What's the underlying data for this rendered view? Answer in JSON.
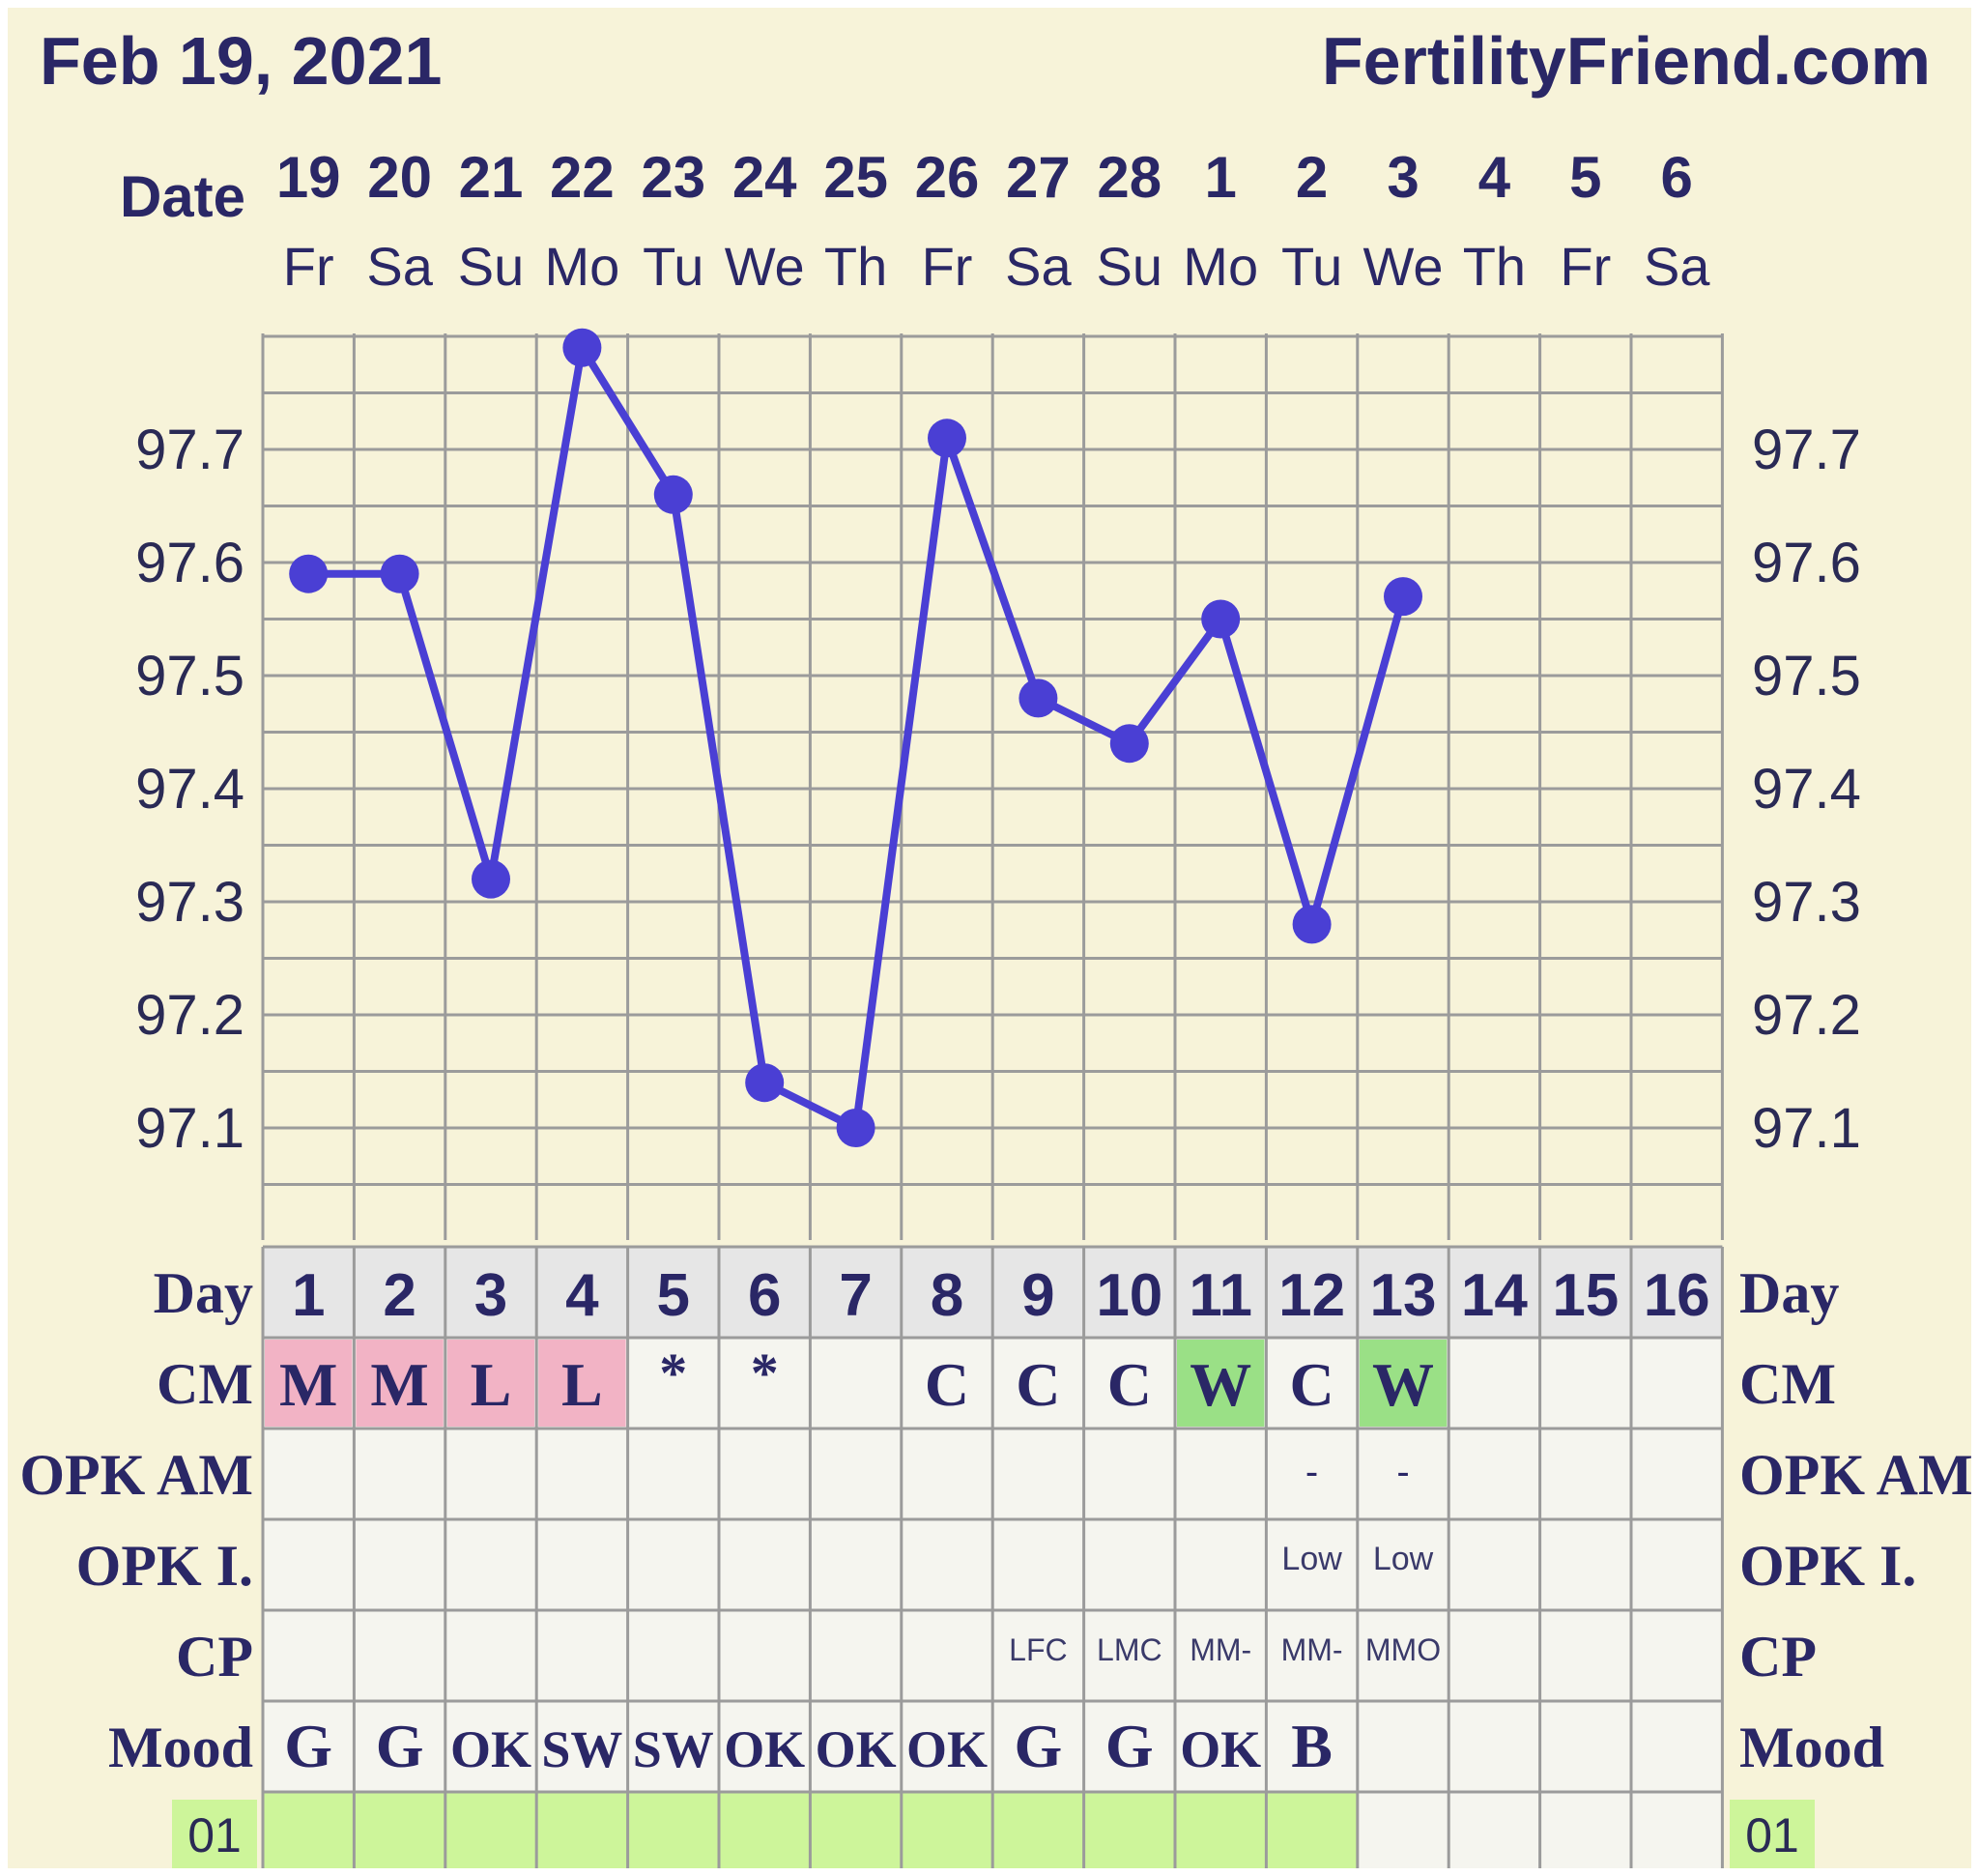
{
  "header": {
    "date_label": "Feb 19, 2021",
    "site_name": "FertilityFriend.com"
  },
  "colors": {
    "background": "#f7f3d9",
    "text": "#2a2766",
    "line": "#4a3fd4",
    "grid": "#9b9b9b",
    "day_row_bg": "#e6e6e6",
    "cell_bg": "#f5f5ef",
    "cm_pink": "#f2b3c5",
    "cm_green": "#9ae086",
    "bottom_green": "#cdf59a"
  },
  "chart_data": {
    "type": "line",
    "title": "",
    "x": [
      1,
      2,
      3,
      4,
      5,
      6,
      7,
      8,
      9,
      10,
      11,
      12,
      13
    ],
    "xlabel": "Day",
    "ylabel": "",
    "ylim": [
      97.0,
      97.8
    ],
    "yticks": [
      97.1,
      97.2,
      97.3,
      97.4,
      97.5,
      97.6,
      97.7
    ],
    "grid": true,
    "series": [
      {
        "values": [
          97.59,
          97.59,
          97.32,
          97.79,
          97.66,
          97.14,
          97.1,
          97.71,
          97.48,
          97.44,
          97.55,
          97.28,
          97.57
        ]
      }
    ]
  },
  "date_row_label": "Date",
  "dates": [
    "19",
    "20",
    "21",
    "22",
    "23",
    "24",
    "25",
    "26",
    "27",
    "28",
    "1",
    "2",
    "3",
    "4",
    "5",
    "6"
  ],
  "weekdays": [
    "Fr",
    "Sa",
    "Su",
    "Mo",
    "Tu",
    "We",
    "Th",
    "Fr",
    "Sa",
    "Su",
    "Mo",
    "Tu",
    "We",
    "Th",
    "Fr",
    "Sa"
  ],
  "day_label": "Day",
  "days": [
    "1",
    "2",
    "3",
    "4",
    "5",
    "6",
    "7",
    "8",
    "9",
    "10",
    "11",
    "12",
    "13",
    "14",
    "15",
    "16"
  ],
  "rows": {
    "cm": {
      "label": "CM",
      "cells": [
        "M",
        "M",
        "L",
        "L",
        "*",
        "*",
        "",
        "C",
        "C",
        "C",
        "W",
        "C",
        "W",
        "",
        "",
        ""
      ],
      "highlights": [
        "pink",
        "pink",
        "pink",
        "pink",
        "",
        "",
        "",
        "",
        "",
        "",
        "green",
        "",
        "green",
        "",
        "",
        ""
      ]
    },
    "opk_am": {
      "label": "OPK AM",
      "cells": [
        "",
        "",
        "",
        "",
        "",
        "",
        "",
        "",
        "",
        "",
        "",
        "-",
        "-",
        "",
        "",
        ""
      ]
    },
    "opk_i": {
      "label": "OPK I.",
      "cells": [
        "",
        "",
        "",
        "",
        "",
        "",
        "",
        "",
        "",
        "",
        "",
        "Low",
        "Low",
        "",
        "",
        ""
      ]
    },
    "cp": {
      "label": "CP",
      "cells": [
        "",
        "",
        "",
        "",
        "",
        "",
        "",
        "",
        "LFC",
        "LMC",
        "MM-",
        "MM-",
        "MMO",
        "",
        "",
        ""
      ]
    },
    "mood": {
      "label": "Mood",
      "cells": [
        "G",
        "G",
        "OK",
        "SW",
        "SW",
        "OK",
        "OK",
        "OK",
        "G",
        "G",
        "OK",
        "B",
        "",
        "",
        "",
        ""
      ]
    },
    "bottom": {
      "label": "01",
      "filled_days": 12
    }
  }
}
